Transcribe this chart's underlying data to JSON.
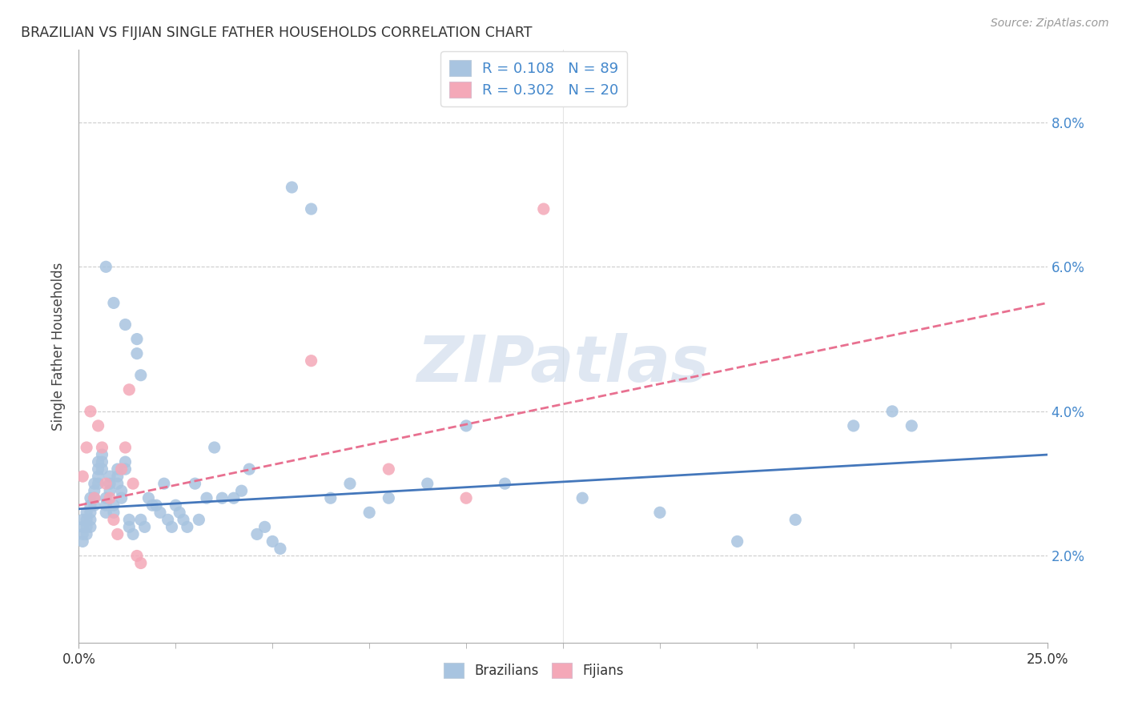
{
  "title": "BRAZILIAN VS FIJIAN SINGLE FATHER HOUSEHOLDS CORRELATION CHART",
  "source": "Source: ZipAtlas.com",
  "ylabel": "Single Father Households",
  "ytick_vals": [
    0.02,
    0.04,
    0.06,
    0.08
  ],
  "ytick_labels": [
    "2.0%",
    "4.0%",
    "6.0%",
    "8.0%"
  ],
  "xtick_labels": [
    "0.0%",
    "25.0%"
  ],
  "xlim": [
    0.0,
    0.25
  ],
  "ylim": [
    0.008,
    0.09
  ],
  "legend_line1": "R = 0.108   N = 89",
  "legend_line2": "R = 0.302   N = 20",
  "legend_label1": "Brazilians",
  "legend_label2": "Fijians",
  "watermark": "ZIPatlas",
  "blue_dot": "#A8C4E0",
  "pink_dot": "#F4A8B8",
  "blue_line": "#4477BB",
  "pink_line": "#E87090",
  "grid_color": "#CCCCCC",
  "title_color": "#333333",
  "source_color": "#999999",
  "right_tick_color": "#4488CC",
  "brazil_trend": [
    0.0265,
    0.034
  ],
  "fiji_trend": [
    0.027,
    0.055
  ],
  "brazil_x": [
    0.001,
    0.001,
    0.001,
    0.001,
    0.002,
    0.002,
    0.002,
    0.002,
    0.003,
    0.003,
    0.003,
    0.003,
    0.003,
    0.004,
    0.004,
    0.004,
    0.004,
    0.005,
    0.005,
    0.005,
    0.005,
    0.006,
    0.006,
    0.006,
    0.007,
    0.007,
    0.007,
    0.008,
    0.008,
    0.008,
    0.009,
    0.009,
    0.01,
    0.01,
    0.01,
    0.011,
    0.011,
    0.012,
    0.012,
    0.013,
    0.013,
    0.014,
    0.015,
    0.016,
    0.016,
    0.017,
    0.018,
    0.019,
    0.02,
    0.021,
    0.022,
    0.023,
    0.024,
    0.025,
    0.026,
    0.027,
    0.028,
    0.03,
    0.031,
    0.033,
    0.035,
    0.037,
    0.04,
    0.042,
    0.044,
    0.046,
    0.048,
    0.05,
    0.052,
    0.055,
    0.06,
    0.065,
    0.07,
    0.075,
    0.08,
    0.09,
    0.1,
    0.11,
    0.13,
    0.15,
    0.17,
    0.185,
    0.2,
    0.21,
    0.215,
    0.007,
    0.009,
    0.012,
    0.015
  ],
  "brazil_y": [
    0.025,
    0.024,
    0.023,
    0.022,
    0.026,
    0.025,
    0.024,
    0.023,
    0.028,
    0.027,
    0.026,
    0.025,
    0.024,
    0.03,
    0.029,
    0.028,
    0.027,
    0.033,
    0.032,
    0.031,
    0.03,
    0.034,
    0.033,
    0.032,
    0.028,
    0.027,
    0.026,
    0.031,
    0.03,
    0.029,
    0.027,
    0.026,
    0.032,
    0.031,
    0.03,
    0.029,
    0.028,
    0.033,
    0.032,
    0.025,
    0.024,
    0.023,
    0.05,
    0.045,
    0.025,
    0.024,
    0.028,
    0.027,
    0.027,
    0.026,
    0.03,
    0.025,
    0.024,
    0.027,
    0.026,
    0.025,
    0.024,
    0.03,
    0.025,
    0.028,
    0.035,
    0.028,
    0.028,
    0.029,
    0.032,
    0.023,
    0.024,
    0.022,
    0.021,
    0.071,
    0.068,
    0.028,
    0.03,
    0.026,
    0.028,
    0.03,
    0.038,
    0.03,
    0.028,
    0.026,
    0.022,
    0.025,
    0.038,
    0.04,
    0.038,
    0.06,
    0.055,
    0.052,
    0.048
  ],
  "fiji_x": [
    0.001,
    0.002,
    0.003,
    0.004,
    0.005,
    0.006,
    0.007,
    0.008,
    0.009,
    0.01,
    0.011,
    0.012,
    0.013,
    0.014,
    0.06,
    0.08,
    0.1,
    0.12,
    0.015,
    0.016
  ],
  "fiji_y": [
    0.031,
    0.035,
    0.04,
    0.028,
    0.038,
    0.035,
    0.03,
    0.028,
    0.025,
    0.023,
    0.032,
    0.035,
    0.043,
    0.03,
    0.047,
    0.032,
    0.028,
    0.068,
    0.02,
    0.019
  ]
}
